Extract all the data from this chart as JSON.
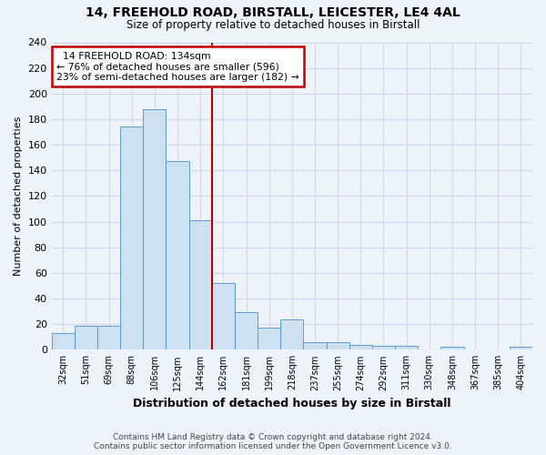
{
  "title1": "14, FREEHOLD ROAD, BIRSTALL, LEICESTER, LE4 4AL",
  "title2": "Size of property relative to detached houses in Birstall",
  "xlabel": "Distribution of detached houses by size in Birstall",
  "ylabel": "Number of detached properties",
  "categories": [
    "32sqm",
    "51sqm",
    "69sqm",
    "88sqm",
    "106sqm",
    "125sqm",
    "144sqm",
    "162sqm",
    "181sqm",
    "199sqm",
    "218sqm",
    "237sqm",
    "255sqm",
    "274sqm",
    "292sqm",
    "311sqm",
    "330sqm",
    "348sqm",
    "367sqm",
    "385sqm",
    "404sqm"
  ],
  "values": [
    13,
    19,
    19,
    174,
    188,
    147,
    101,
    52,
    29,
    17,
    24,
    6,
    6,
    4,
    3,
    3,
    0,
    2,
    0,
    0,
    2
  ],
  "bar_color": "#cce0f0",
  "bar_edge_color": "#5b9bd5",
  "grid_color": "#d0d8e8",
  "background_color": "#eef3fa",
  "vline_x": 6.5,
  "vline_color": "#c00000",
  "annotation_line1": "  14 FREEHOLD ROAD: 134sqm",
  "annotation_line2": "← 76% of detached houses are smaller (596)",
  "annotation_line3": "23% of semi-detached houses are larger (182) →",
  "annotation_box_color": "#ffffff",
  "annotation_box_edge": "#c00000",
  "footer1": "Contains HM Land Registry data © Crown copyright and database right 2024.",
  "footer2": "Contains public sector information licensed under the Open Government Licence v3.0.",
  "ylim": [
    0,
    240
  ],
  "yticks": [
    0,
    20,
    40,
    60,
    80,
    100,
    120,
    140,
    160,
    180,
    200,
    220,
    240
  ]
}
